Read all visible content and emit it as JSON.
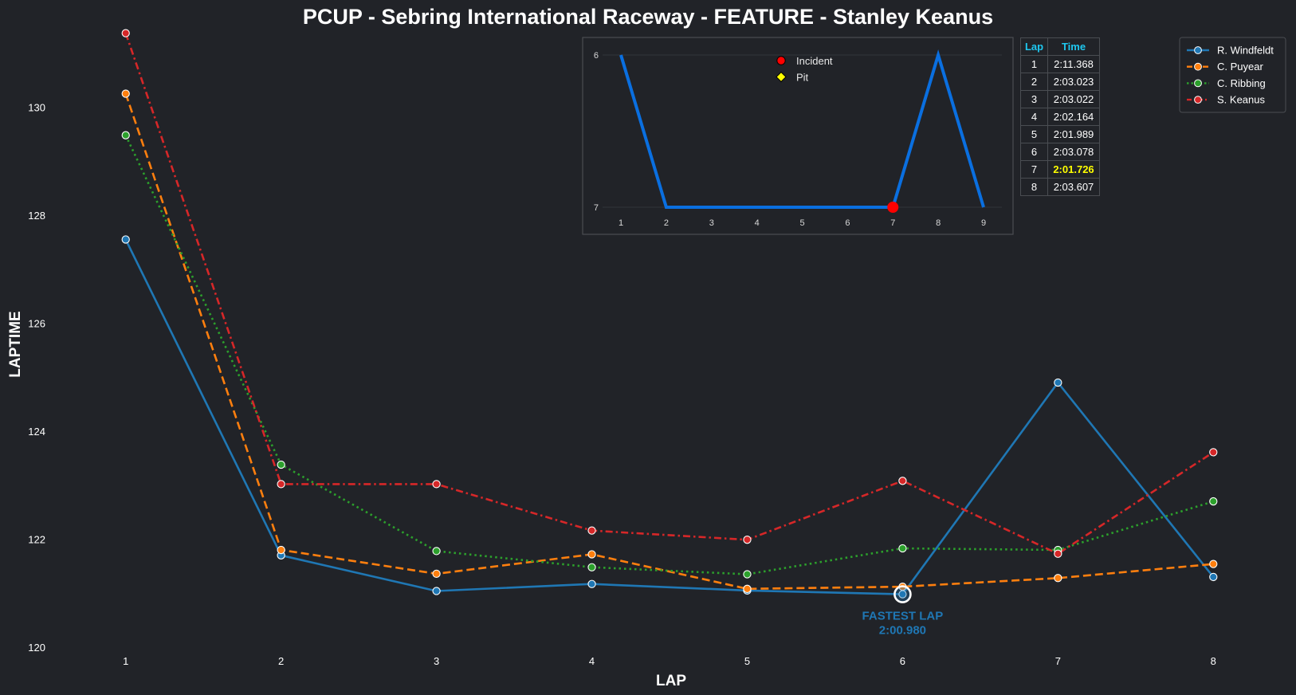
{
  "chart_data": [
    {
      "type": "line",
      "title": "PCUP - Sebring International Raceway - FEATURE - Stanley Keanus",
      "xlabel": "LAP",
      "ylabel": "LAPTIME",
      "x": [
        1,
        2,
        3,
        4,
        5,
        6,
        7,
        8
      ],
      "xticks": [
        "1",
        "2",
        "3",
        "4",
        "5",
        "6",
        "7",
        "8"
      ],
      "yticks": [
        "120",
        "122",
        "124",
        "126",
        "128",
        "130"
      ],
      "xlim": [
        0.55,
        8.45
      ],
      "ylim": [
        120,
        131.35
      ],
      "grid": false,
      "legend": "top-right",
      "series": [
        {
          "name": "R. Windfeldt",
          "color": "#1f77b4",
          "dash": "solid",
          "values": [
            127.55,
            121.7,
            121.04,
            121.17,
            121.05,
            120.98,
            124.9,
            121.3
          ]
        },
        {
          "name": "C. Puyear",
          "color": "#ff7f0e",
          "dash": "dashed",
          "values": [
            130.25,
            121.8,
            121.36,
            121.72,
            121.08,
            121.12,
            121.28,
            121.54
          ]
        },
        {
          "name": "C. Ribbing",
          "color": "#2ca02c",
          "dash": "dotted",
          "values": [
            129.48,
            123.38,
            121.78,
            121.48,
            121.35,
            121.83,
            121.8,
            122.7
          ]
        },
        {
          "name": "S. Keanus",
          "color": "#d62728",
          "dash": "dashdot",
          "values": [
            131.37,
            123.02,
            123.02,
            122.16,
            121.99,
            123.08,
            121.73,
            123.61
          ]
        }
      ],
      "annotations": [
        {
          "x": 6,
          "y": 120.98,
          "line1": "FASTEST LAP",
          "line2": "2:00.980",
          "color": "#1f77b4"
        }
      ]
    },
    {
      "type": "line",
      "title": "",
      "x": [
        1,
        2,
        3,
        4,
        5,
        6,
        7,
        8,
        9
      ],
      "xticks": [
        "1",
        "2",
        "3",
        "4",
        "5",
        "6",
        "7",
        "8",
        "9"
      ],
      "yticks": [
        "6",
        "7"
      ],
      "ylim": [
        6,
        7
      ],
      "y_inverted": true,
      "legend": "top",
      "series": [
        {
          "name": "",
          "color": "#0a6fe0",
          "values": [
            6,
            7,
            7,
            7,
            7,
            7,
            7,
            6,
            7
          ]
        }
      ],
      "markers": [
        {
          "type": "Incident",
          "x": 7,
          "y": 7,
          "color": "#ff0000"
        }
      ],
      "legend_entries": [
        {
          "label": "Incident",
          "color": "#ff0000",
          "shape": "circle"
        },
        {
          "label": "Pit",
          "color": "#ffff00",
          "shape": "diamond"
        }
      ]
    }
  ],
  "lap_table": {
    "headers": [
      "Lap",
      "Time"
    ],
    "rows": [
      {
        "lap": "1",
        "time": "2:11.368",
        "best": false
      },
      {
        "lap": "2",
        "time": "2:03.023",
        "best": false
      },
      {
        "lap": "3",
        "time": "2:03.022",
        "best": false
      },
      {
        "lap": "4",
        "time": "2:02.164",
        "best": false
      },
      {
        "lap": "5",
        "time": "2:01.989",
        "best": false
      },
      {
        "lap": "6",
        "time": "2:03.078",
        "best": false
      },
      {
        "lap": "7",
        "time": "2:01.726",
        "best": true
      },
      {
        "lap": "8",
        "time": "2:03.607",
        "best": false
      }
    ]
  }
}
